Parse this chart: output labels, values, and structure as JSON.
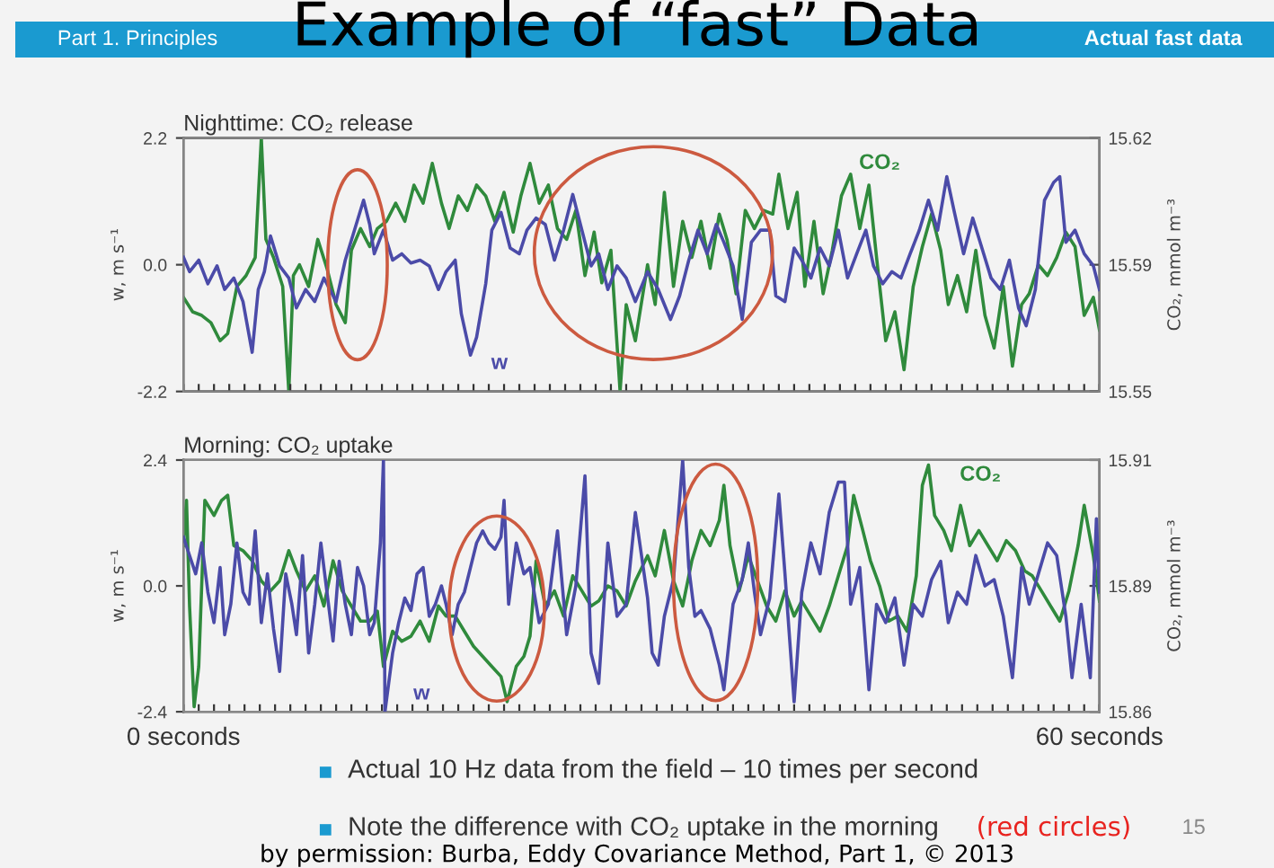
{
  "chart_data": [
    {
      "type": "line",
      "title": "Nighttime: CO₂ release",
      "ylabel": "w, m s⁻¹",
      "y2label": "CO₂, mmol m⁻³",
      "annotations": [
        "Part 1. Principles",
        "Example of “fast” Data",
        "Actual fast data"
      ],
      "tick_labels": "y",
      "xlim": [
        0,
        60
      ],
      "ylim": [
        -2.2,
        2.2
      ],
      "yticks": [
        -2.2,
        {
          "value": 0,
          "label": "0.0"
        },
        2.2
      ],
      "y2lim": [
        15.55,
        15.62
      ],
      "y2ticks": [
        15.55,
        {
          "value": 15.585,
          "label": "15.59"
        },
        15.62
      ],
      "xticks": [
        {
          "value": 0,
          "label": null
        },
        {
          "value": 1,
          "label": null
        },
        {
          "value": 2,
          "label": null
        },
        {
          "value": 3,
          "label": null
        },
        {
          "value": 4,
          "label": null
        },
        {
          "value": 5,
          "label": null
        },
        {
          "value": 6,
          "label": null
        },
        {
          "value": 7,
          "label": null
        },
        {
          "value": 8,
          "label": null
        },
        {
          "value": 9,
          "label": null
        },
        {
          "value": 10,
          "label": null
        },
        {
          "value": 11,
          "label": null
        },
        {
          "value": 12,
          "label": null
        },
        {
          "value": 13,
          "label": null
        },
        {
          "value": 14,
          "label": null
        },
        {
          "value": 15,
          "label": null
        },
        {
          "value": 16,
          "label": null
        },
        {
          "value": 17,
          "label": null
        },
        {
          "value": 18,
          "label": null
        },
        {
          "value": 19,
          "label": null
        },
        {
          "value": 20,
          "label": null
        },
        {
          "value": 21,
          "label": null
        },
        {
          "value": 22,
          "label": null
        },
        {
          "value": 23,
          "label": null
        },
        {
          "value": 24,
          "label": null
        },
        {
          "value": 25,
          "label": null
        },
        {
          "value": 26,
          "label": null
        },
        {
          "value": 27,
          "label": null
        },
        {
          "value": 28,
          "label": null
        },
        {
          "value": 29,
          "label": null
        },
        {
          "value": 30,
          "label": null
        },
        {
          "value": 31,
          "label": null
        },
        {
          "value": 32,
          "label": null
        },
        {
          "value": 33,
          "label": null
        },
        {
          "value": 34,
          "label": null
        },
        {
          "value": 35,
          "label": null
        },
        {
          "value": 36,
          "label": null
        },
        {
          "value": 37,
          "label": null
        },
        {
          "value": 38,
          "label": null
        },
        {
          "value": 39,
          "label": null
        },
        {
          "value": 40,
          "label": null
        },
        {
          "value": 41,
          "label": null
        },
        {
          "value": 42,
          "label": null
        },
        {
          "value": 43,
          "label": null
        },
        {
          "value": 44,
          "label": null
        },
        {
          "value": 45,
          "label": null
        },
        {
          "value": 46,
          "label": null
        },
        {
          "value": 47,
          "label": null
        },
        {
          "value": 48,
          "label": null
        },
        {
          "value": 49,
          "label": null
        },
        {
          "value": 50,
          "label": null
        },
        {
          "value": 51,
          "label": null
        },
        {
          "value": 52,
          "label": null
        },
        {
          "value": 53,
          "label": null
        },
        {
          "value": 54,
          "label": null
        },
        {
          "value": 55,
          "label": null
        },
        {
          "value": 56,
          "label": null
        },
        {
          "value": 57,
          "label": null
        },
        {
          "value": 58,
          "label": null
        },
        {
          "value": 59,
          "label": null
        },
        {
          "value": 60,
          "label": null
        }
      ],
      "series": [
        {
          "name": "w",
          "color": "#4b4ba8",
          "x": [
            0,
            0.4,
            1.0,
            1.6,
            2.2,
            2.7,
            3.3,
            3.9,
            4.5,
            4.9,
            5.3,
            5.7,
            6.3,
            6.9,
            7.4,
            8.0,
            8.6,
            9.2,
            10.0,
            10.6,
            11.2,
            11.8,
            12.2,
            12.5,
            13.1,
            13.7,
            14.3,
            14.9,
            15.5,
            16.1,
            16.7,
            17.2,
            17.8,
            18.2,
            18.8,
            19.2,
            19.8,
            20.2,
            20.8,
            21.4,
            22.0,
            22.5,
            23.1,
            23.7,
            24.3,
            24.9,
            25.5,
            26.1,
            26.7,
            27.2,
            27.8,
            28.4,
            29.0,
            29.6,
            30.4,
            31.1,
            31.9,
            32.5,
            33.1,
            33.7,
            34.3,
            34.9,
            35.4,
            36.0,
            36.6,
            37.2,
            37.8,
            38.4,
            38.8,
            39.4,
            40.0,
            40.5,
            41.1,
            41.7,
            42.3,
            42.9,
            43.5,
            44.1,
            44.7,
            45.2,
            45.8,
            46.4,
            47.0,
            47.6,
            48.2,
            48.8,
            49.4,
            50.0,
            50.5,
            51.1,
            51.7,
            52.3,
            52.9,
            53.5,
            54.1,
            54.7,
            55.2,
            55.8,
            56.4,
            57.0,
            57.4,
            57.8,
            58.4,
            59.0,
            59.6,
            60.0
          ],
          "values": [
            0.13,
            -0.12,
            0.08,
            -0.33,
            -0.02,
            -0.43,
            -0.23,
            -0.64,
            -1.52,
            -0.43,
            -0.12,
            0.5,
            -0.02,
            -0.23,
            -0.75,
            -0.43,
            -0.64,
            -0.23,
            -0.64,
            0.08,
            0.6,
            1.12,
            0.7,
            0.19,
            0.6,
            0.08,
            0.19,
            0.03,
            0.08,
            -0.02,
            -0.43,
            -0.12,
            0.08,
            -0.85,
            -1.57,
            -1.26,
            -0.33,
            0.6,
            0.91,
            0.29,
            0.19,
            0.6,
            0.81,
            0.7,
            0.08,
            0.6,
            1.22,
            0.6,
            -0.02,
            0.19,
            -0.43,
            -0.02,
            -0.23,
            -0.64,
            -0.12,
            -0.43,
            -0.95,
            -0.54,
            0.08,
            0.6,
            0.19,
            0.7,
            0.39,
            -0.02,
            -0.95,
            0.39,
            0.6,
            0.6,
            -0.54,
            -0.64,
            0.29,
            0.08,
            -0.23,
            0.29,
            -0.02,
            0.6,
            -0.23,
            0.19,
            0.6,
            -0.02,
            -0.33,
            -0.12,
            -0.23,
            0.19,
            0.6,
            1.12,
            0.6,
            1.53,
            0.91,
            0.19,
            0.81,
            0.29,
            -0.23,
            -0.43,
            0.08,
            -0.75,
            -1.06,
            -0.43,
            1.12,
            1.43,
            1.53,
            0.39,
            0.6,
            0.19,
            -0.02,
            -0.43
          ]
        },
        {
          "name": "CO₂",
          "color": "#2f8a3c",
          "axis": "y2",
          "x": [
            0,
            0.6,
            1.2,
            1.8,
            2.4,
            2.9,
            3.5,
            4.1,
            4.7,
            5.1,
            5.4,
            5.9,
            6.5,
            6.9,
            7.2,
            7.6,
            8.2,
            8.8,
            9.4,
            10.0,
            10.6,
            11.0,
            11.6,
            12.2,
            12.7,
            13.3,
            13.9,
            14.5,
            15.1,
            15.7,
            16.3,
            16.9,
            17.4,
            18.0,
            18.6,
            19.2,
            19.8,
            20.4,
            21.0,
            21.6,
            22.1,
            22.7,
            23.3,
            23.9,
            24.5,
            25.1,
            25.7,
            26.3,
            26.9,
            27.4,
            28.0,
            28.6,
            29.0,
            29.6,
            30.4,
            30.9,
            31.5,
            32.1,
            32.7,
            33.3,
            33.9,
            34.5,
            35.1,
            35.6,
            36.2,
            36.8,
            37.4,
            38.0,
            38.6,
            39.0,
            39.6,
            40.2,
            40.7,
            41.3,
            41.9,
            42.5,
            43.1,
            43.7,
            44.3,
            44.9,
            45.4,
            46.0,
            46.6,
            47.2,
            47.8,
            48.4,
            49.0,
            49.6,
            50.1,
            50.7,
            51.3,
            51.9,
            52.5,
            53.1,
            53.7,
            54.3,
            54.9,
            55.4,
            56.0,
            56.6,
            57.2,
            57.8,
            58.4,
            59.0,
            59.6,
            60.0
          ],
          "values": [
            15.576,
            15.572,
            15.571,
            15.569,
            15.564,
            15.566,
            15.579,
            15.582,
            15.587,
            15.62,
            15.592,
            15.587,
            15.579,
            15.55,
            15.582,
            15.585,
            15.579,
            15.592,
            15.584,
            15.574,
            15.569,
            15.589,
            15.595,
            15.59,
            15.595,
            15.597,
            15.602,
            15.597,
            15.607,
            15.602,
            15.613,
            15.602,
            15.595,
            15.604,
            15.6,
            15.607,
            15.604,
            15.597,
            15.605,
            15.594,
            15.604,
            15.613,
            15.602,
            15.607,
            15.595,
            15.592,
            15.6,
            15.582,
            15.594,
            15.58,
            15.589,
            15.55,
            15.574,
            15.564,
            15.585,
            15.574,
            15.605,
            15.579,
            15.597,
            15.587,
            15.597,
            15.584,
            15.599,
            15.592,
            15.577,
            15.6,
            15.595,
            15.6,
            15.599,
            15.61,
            15.595,
            15.605,
            15.579,
            15.597,
            15.577,
            15.589,
            15.604,
            15.61,
            15.595,
            15.607,
            15.587,
            15.564,
            15.572,
            15.556,
            15.579,
            15.59,
            15.599,
            15.589,
            15.574,
            15.582,
            15.572,
            15.589,
            15.571,
            15.562,
            15.579,
            15.557,
            15.574,
            15.577,
            15.585,
            15.582,
            15.587,
            15.594,
            15.59,
            15.571,
            15.576,
            15.567
          ]
        }
      ]
    },
    {
      "type": "line",
      "title": "Morning: CO₂ uptake",
      "ylabel": "w, m s⁻¹",
      "y2label": "CO₂, mmol m⁻³",
      "annotations": [
        "Actual 10 Hz data from the field – 10 times per second",
        "Note the difference with CO₂ uptake in the morning",
        "(red circles)",
        "15",
        "by permission: Burba, Eddy Covariance Method, Part 1, © 2013"
      ],
      "xlim": [
        0,
        60
      ],
      "ylim": [
        -2.4,
        2.4
      ],
      "yticks": [
        -2.4,
        {
          "value": 0,
          "label": "0.0"
        },
        2.4
      ],
      "y2lim": [
        15.86,
        15.91
      ],
      "y2ticks": [
        15.86,
        {
          "value": 15.885,
          "label": "15.89"
        },
        15.91
      ],
      "xticks": [
        {
          "value": 0,
          "label": "0 seconds"
        },
        {
          "value": 1,
          "label": null
        },
        {
          "value": 2,
          "label": null
        },
        {
          "value": 3,
          "label": null
        },
        {
          "value": 4,
          "label": null
        },
        {
          "value": 5,
          "label": null
        },
        {
          "value": 6,
          "label": null
        },
        {
          "value": 7,
          "label": null
        },
        {
          "value": 8,
          "label": null
        },
        {
          "value": 9,
          "label": null
        },
        {
          "value": 10,
          "label": null
        },
        {
          "value": 11,
          "label": null
        },
        {
          "value": 12,
          "label": null
        },
        {
          "value": 13,
          "label": null
        },
        {
          "value": 14,
          "label": null
        },
        {
          "value": 15,
          "label": null
        },
        {
          "value": 16,
          "label": null
        },
        {
          "value": 17,
          "label": null
        },
        {
          "value": 18,
          "label": null
        },
        {
          "value": 19,
          "label": null
        },
        {
          "value": 20,
          "label": null
        },
        {
          "value": 21,
          "label": null
        },
        {
          "value": 22,
          "label": null
        },
        {
          "value": 23,
          "label": null
        },
        {
          "value": 24,
          "label": null
        },
        {
          "value": 25,
          "label": null
        },
        {
          "value": 26,
          "label": null
        },
        {
          "value": 27,
          "label": null
        },
        {
          "value": 28,
          "label": null
        },
        {
          "value": 29,
          "label": null
        },
        {
          "value": 30,
          "label": null
        },
        {
          "value": 31,
          "label": null
        },
        {
          "value": 32,
          "label": null
        },
        {
          "value": 33,
          "label": null
        },
        {
          "value": 34,
          "label": null
        },
        {
          "value": 35,
          "label": null
        },
        {
          "value": 36,
          "label": null
        },
        {
          "value": 37,
          "label": null
        },
        {
          "value": 38,
          "label": null
        },
        {
          "value": 39,
          "label": null
        },
        {
          "value": 40,
          "label": null
        },
        {
          "value": 41,
          "label": null
        },
        {
          "value": 42,
          "label": null
        },
        {
          "value": 43,
          "label": null
        },
        {
          "value": 44,
          "label": null
        },
        {
          "value": 45,
          "label": null
        },
        {
          "value": 46,
          "label": null
        },
        {
          "value": 47,
          "label": null
        },
        {
          "value": 48,
          "label": null
        },
        {
          "value": 49,
          "label": null
        },
        {
          "value": 50,
          "label": null
        },
        {
          "value": 51,
          "label": null
        },
        {
          "value": 52,
          "label": null
        },
        {
          "value": 53,
          "label": null
        },
        {
          "value": 54,
          "label": null
        },
        {
          "value": 55,
          "label": null
        },
        {
          "value": 56,
          "label": null
        },
        {
          "value": 57,
          "label": null
        },
        {
          "value": 58,
          "label": null
        },
        {
          "value": 59,
          "label": null
        },
        {
          "value": 60,
          "label": "60 seconds"
        }
      ],
      "series": [
        {
          "name": "w",
          "color": "#4b4ba8",
          "x": [
            0,
            0.4,
            0.8,
            1.2,
            1.6,
            2.0,
            2.4,
            2.7,
            3.1,
            3.5,
            3.9,
            4.3,
            4.7,
            5.1,
            5.5,
            5.9,
            6.3,
            6.7,
            7.1,
            7.4,
            7.8,
            8.2,
            8.6,
            9.0,
            9.4,
            9.8,
            10.2,
            10.6,
            11.0,
            11.4,
            11.8,
            12.2,
            12.5,
            12.9,
            13.1,
            13.2,
            13.7,
            14.1,
            14.5,
            14.9,
            15.3,
            15.7,
            16.1,
            16.5,
            16.9,
            17.2,
            17.6,
            18.0,
            18.4,
            18.8,
            19.2,
            19.6,
            20.0,
            20.4,
            20.8,
            21.0,
            21.3,
            21.8,
            22.3,
            22.7,
            23.3,
            23.9,
            24.5,
            25.1,
            25.7,
            26.3,
            26.7,
            27.2,
            27.8,
            28.4,
            29.0,
            29.6,
            30.4,
            30.7,
            31.1,
            31.5,
            32.1,
            32.7,
            33.1,
            33.5,
            33.9,
            34.5,
            35.1,
            35.4,
            36.0,
            36.6,
            37.0,
            37.4,
            37.8,
            38.4,
            39.0,
            39.4,
            40.0,
            40.5,
            41.1,
            41.7,
            42.3,
            42.9,
            43.3,
            43.7,
            44.3,
            44.9,
            45.4,
            46.0,
            46.6,
            47.2,
            47.8,
            48.4,
            49.0,
            49.6,
            50.1,
            50.7,
            51.3,
            51.9,
            52.5,
            53.1,
            53.7,
            54.3,
            54.9,
            55.4,
            56.0,
            56.6,
            57.2,
            57.8,
            58.2,
            58.8,
            59.4,
            59.8,
            60.0
          ],
          "values": [
            0.93,
            0.58,
            0.23,
            0.82,
            -0.12,
            -0.7,
            0.35,
            -0.93,
            -0.35,
            0.82,
            -0.12,
            -0.35,
            1.05,
            -0.7,
            0.23,
            -0.82,
            -1.63,
            0.23,
            -0.35,
            -0.93,
            0.58,
            -1.28,
            -0.35,
            0.82,
            -0.12,
            -1.05,
            0.47,
            -0.35,
            -0.93,
            0.35,
            0,
            -0.93,
            -0.7,
            0.82,
            2.4,
            -2.4,
            -1.28,
            -0.7,
            -0.23,
            -0.47,
            0.23,
            0.35,
            -0.58,
            -0.35,
            0,
            -0.35,
            -0.93,
            -0.35,
            -0.12,
            0.35,
            0.82,
            1.05,
            0.82,
            0.7,
            0.93,
            1.63,
            -0.35,
            0.82,
            0.23,
            0.35,
            -0.7,
            -0.35,
            1.05,
            -0.93,
            0,
            2.1,
            -1.28,
            -1.86,
            0.82,
            -0.58,
            -0.35,
            1.4,
            -0.23,
            -1.28,
            -1.51,
            -0.58,
            0.12,
            2.4,
            0.35,
            -0.58,
            -0.47,
            -0.82,
            -1.51,
            -1.98,
            -0.35,
            0.12,
            0.82,
            -0.12,
            -0.93,
            -0.23,
            1.75,
            0.23,
            -2.21,
            -0.12,
            0.82,
            0.23,
            1.4,
            1.98,
            1.98,
            -0.35,
            0.35,
            -1.98,
            -0.35,
            -0.7,
            -0.23,
            -1.51,
            -0.35,
            -0.58,
            0.12,
            0.47,
            -0.7,
            -0.12,
            -0.35,
            0.58,
            0,
            0.12,
            -0.58,
            -1.75,
            0.35,
            -0.35,
            0.23,
            0.82,
            0.58,
            -0.58,
            -1.75,
            -0.35,
            -1.75,
            1.28,
            -0.12
          ]
        },
        {
          "name": "CO₂",
          "color": "#2f8a3c",
          "axis": "y2",
          "x": [
            0,
            0.2,
            0.4,
            0.7,
            1.0,
            1.4,
            2.0,
            2.5,
            2.9,
            3.3,
            3.9,
            4.5,
            5.1,
            5.7,
            6.3,
            6.9,
            7.4,
            8.0,
            8.6,
            9.2,
            9.8,
            10.4,
            11.0,
            11.6,
            12.2,
            12.7,
            13.1,
            13.7,
            14.3,
            14.9,
            15.5,
            16.1,
            16.7,
            17.2,
            17.8,
            18.4,
            19.0,
            19.6,
            20.2,
            20.8,
            21.2,
            21.8,
            22.3,
            22.7,
            23.1,
            23.7,
            24.3,
            24.9,
            25.5,
            26.1,
            26.7,
            27.2,
            27.8,
            28.4,
            29.0,
            29.6,
            30.4,
            30.9,
            31.5,
            32.1,
            32.7,
            33.3,
            33.9,
            34.5,
            35.1,
            35.4,
            35.8,
            36.4,
            37.0,
            37.6,
            38.2,
            38.8,
            39.4,
            40.0,
            40.5,
            41.1,
            41.7,
            42.3,
            42.9,
            43.5,
            43.9,
            44.5,
            45.0,
            45.6,
            46.2,
            46.8,
            47.4,
            48.0,
            48.4,
            48.8,
            49.2,
            49.8,
            50.3,
            50.9,
            51.5,
            52.1,
            52.7,
            53.3,
            53.9,
            54.5,
            55.1,
            55.6,
            56.2,
            56.8,
            57.4,
            58.0,
            58.6,
            59.0,
            59.6,
            60.0
          ],
          "values": [
            15.893,
            15.902,
            15.881,
            15.861,
            15.869,
            15.902,
            15.899,
            15.902,
            15.903,
            15.893,
            15.892,
            15.89,
            15.886,
            15.884,
            15.886,
            15.892,
            15.888,
            15.884,
            15.887,
            15.881,
            15.89,
            15.884,
            15.881,
            15.878,
            15.878,
            15.88,
            15.869,
            15.876,
            15.874,
            15.875,
            15.878,
            15.874,
            15.881,
            15.879,
            15.879,
            15.876,
            15.873,
            15.871,
            15.869,
            15.867,
            15.862,
            15.869,
            15.871,
            15.875,
            15.89,
            15.881,
            15.884,
            15.879,
            15.887,
            15.884,
            15.881,
            15.882,
            15.885,
            15.884,
            15.881,
            15.886,
            15.891,
            15.887,
            15.896,
            15.886,
            15.881,
            15.89,
            15.896,
            15.893,
            15.898,
            15.905,
            15.893,
            15.884,
            15.891,
            15.886,
            15.881,
            15.878,
            15.884,
            15.879,
            15.882,
            15.879,
            15.876,
            15.881,
            15.887,
            15.893,
            15.903,
            15.896,
            15.89,
            15.885,
            15.878,
            15.879,
            15.876,
            15.887,
            15.905,
            15.909,
            15.899,
            15.896,
            15.892,
            15.901,
            15.893,
            15.896,
            15.893,
            15.89,
            15.894,
            15.892,
            15.888,
            15.887,
            15.884,
            15.881,
            15.878,
            15.884,
            15.893,
            15.901,
            15.891,
            15.882
          ]
        }
      ]
    }
  ]
}
